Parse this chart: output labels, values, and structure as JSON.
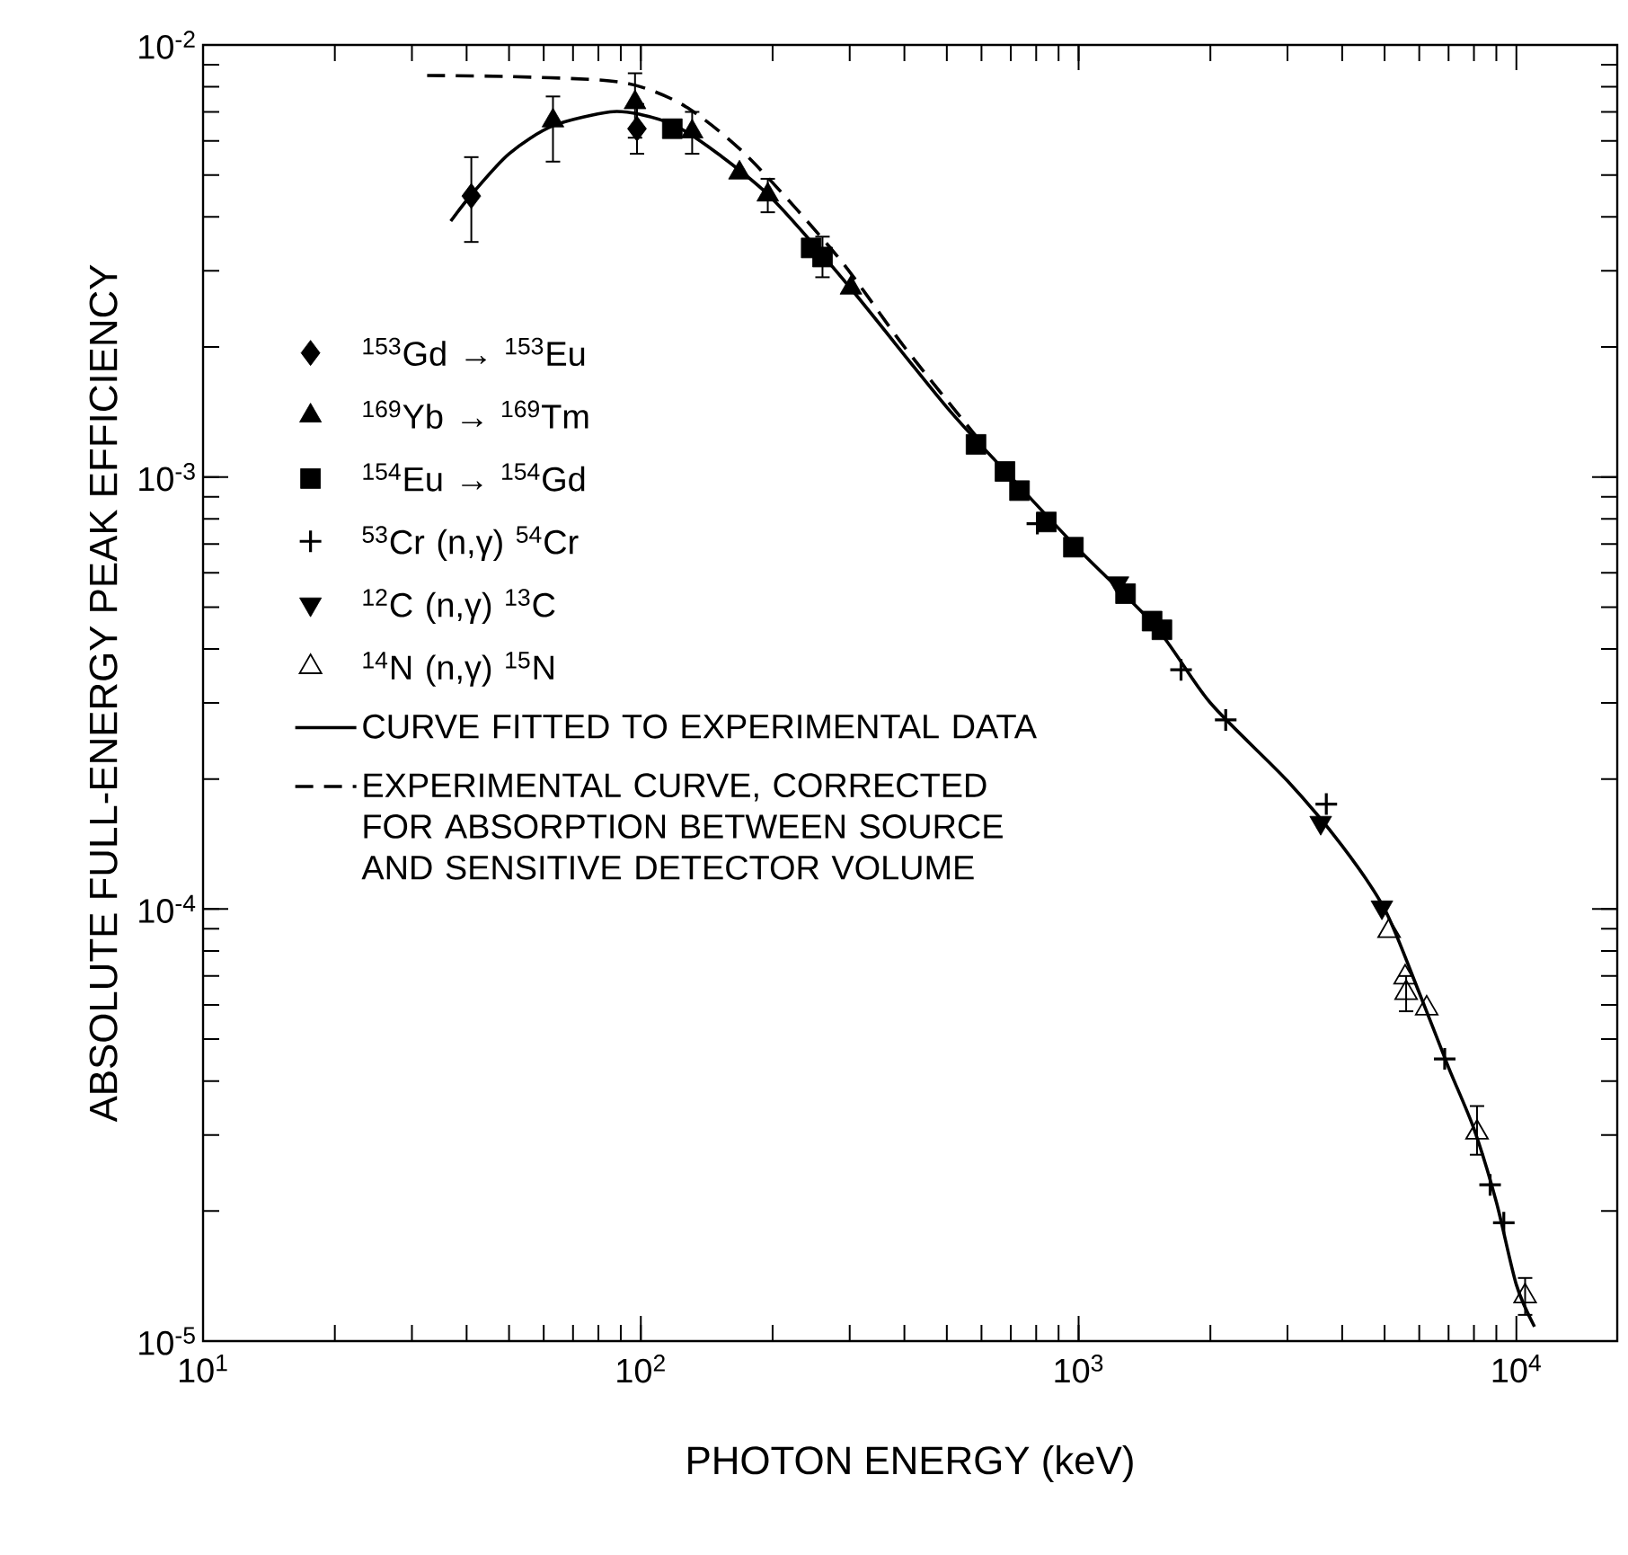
{
  "chart_data": {
    "type": "scatter",
    "xlabel": "PHOTON ENERGY (keV)",
    "ylabel": "ABSOLUTE FULL-ENERGY PEAK EFFICIENCY",
    "log": "xy",
    "legend": "left",
    "xlim": [
      10,
      17000
    ],
    "ylim": [
      1e-05,
      0.01
    ],
    "xticks": [
      {
        "value": 10,
        "label": "10$^{1}$"
      },
      {
        "value": 100,
        "label": "10$^{2}$"
      },
      {
        "value": 1000,
        "label": "10$^{3}$"
      },
      {
        "value": 10000,
        "label": "10$^{4}$"
      }
    ],
    "yticks": [
      {
        "value": 1e-05,
        "label": "10$^{-5}$"
      },
      {
        "value": 0.0001,
        "label": "10$^{-4}$"
      },
      {
        "value": 0.001,
        "label": "10$^{-3}$"
      },
      {
        "value": 0.01,
        "label": "10$^{-2}$"
      }
    ],
    "series": [
      {
        "name": "$^{153}$Gd → $^{153}$Eu",
        "marker": "diamond",
        "color": "#000000",
        "x": [
          41,
          98
        ],
        "values": [
          0.00447,
          0.0064
        ],
        "errors": [
          [
            0.0035,
            0.0055
          ],
          [
            0.0056,
            0.0073
          ]
        ]
      },
      {
        "name": "$^{169}$Yb → $^{169}$Tm",
        "marker": "triangle",
        "color": "#000000",
        "x": [
          63,
          97,
          131,
          168,
          195,
          302
        ],
        "values": [
          0.00668,
          0.00736,
          0.0063,
          0.00506,
          0.0045,
          0.00274
        ],
        "errors": [
          [
            0.00537,
            0.0076
          ],
          [
            0.0061,
            0.0086
          ],
          [
            0.0056,
            0.007
          ],
          null,
          [
            0.0041,
            0.0049
          ],
          null
        ]
      },
      {
        "name": "$^{154}$Eu → $^{154}$Gd",
        "marker": "square",
        "color": "#000000",
        "x": [
          118,
          245,
          260,
          583,
          679,
          733,
          844,
          973,
          1280,
          1472,
          1550
        ],
        "values": [
          0.0064,
          0.00339,
          0.00323,
          0.00119,
          0.00103,
          0.00093,
          0.000787,
          0.000688,
          0.000537,
          0.000464,
          0.000443
        ],
        "errors": [
          null,
          null,
          [
            0.0029,
            0.0036
          ],
          null,
          null,
          null,
          null,
          null,
          null,
          null,
          null
        ]
      },
      {
        "name": "$^{53}$Cr (n,γ) $^{54}$Cr",
        "marker": "cross",
        "color": "#000000",
        "x": [
          805,
          1714,
          2168,
          3680,
          6860,
          8710,
          9360
        ],
        "values": [
          0.00078,
          0.000358,
          0.000274,
          0.000175,
          4.5e-05,
          2.3e-05,
          1.88e-05
        ]
      },
      {
        "name": "$^{12}$C (n,γ) $^{13}$C",
        "marker": "triangle-down",
        "color": "#000000",
        "x": [
          1230,
          3573,
          4930
        ],
        "values": [
          0.000568,
          0.0001585,
          0.000101
        ]
      },
      {
        "name": "$^{14}$N (n,γ) $^{15}$N",
        "marker": "triangle-open",
        "color": "#000000",
        "x": [
          5120,
          5570,
          5600,
          6240,
          8130,
          10470
        ],
        "values": [
          8.9e-05,
          6.95e-05,
          6.4e-05,
          5.89e-05,
          3.04e-05,
          1.27e-05
        ],
        "errors": [
          null,
          null,
          [
            5.8e-05,
            7e-05
          ],
          null,
          [
            2.7e-05,
            3.5e-05
          ],
          [
            1.15e-05,
            1.4e-05
          ]
        ]
      },
      {
        "name": "CURVE FITTED TO EXPERIMENTAL DATA",
        "type": "line",
        "line_style": "solid",
        "color": "#000000",
        "x": [
          36.8,
          41,
          50,
          63,
          85,
          100,
          120,
          150,
          200,
          300,
          500,
          700,
          1000,
          1500,
          2000,
          3000,
          4000,
          5000,
          6000,
          7000,
          8000,
          9000,
          10000,
          11000
        ],
        "values": [
          0.00391,
          0.0045,
          0.0056,
          0.0065,
          0.007,
          0.0069,
          0.0065,
          0.0056,
          0.0044,
          0.00275,
          0.00145,
          0.001,
          0.00068,
          0.00045,
          0.0003,
          0.000198,
          0.00014,
          0.0001,
          6.4e-05,
          4.3e-05,
          3.1e-05,
          2.1e-05,
          1.35e-05,
          1.08e-05
        ]
      },
      {
        "name": "EXPERIMENTAL CURVE, CORRECTED FOR ABSORPTION BETWEEN SOURCE AND SENSITIVE DETECTOR VOLUME",
        "type": "line",
        "line_style": "dashed",
        "color": "#000000",
        "x": [
          32.5,
          50,
          80,
          100,
          128,
          176,
          282,
          400,
          600
        ],
        "values": [
          0.0085,
          0.00845,
          0.0083,
          0.008,
          0.00715,
          0.0055,
          0.00323,
          0.002,
          0.0012
        ]
      }
    ]
  }
}
